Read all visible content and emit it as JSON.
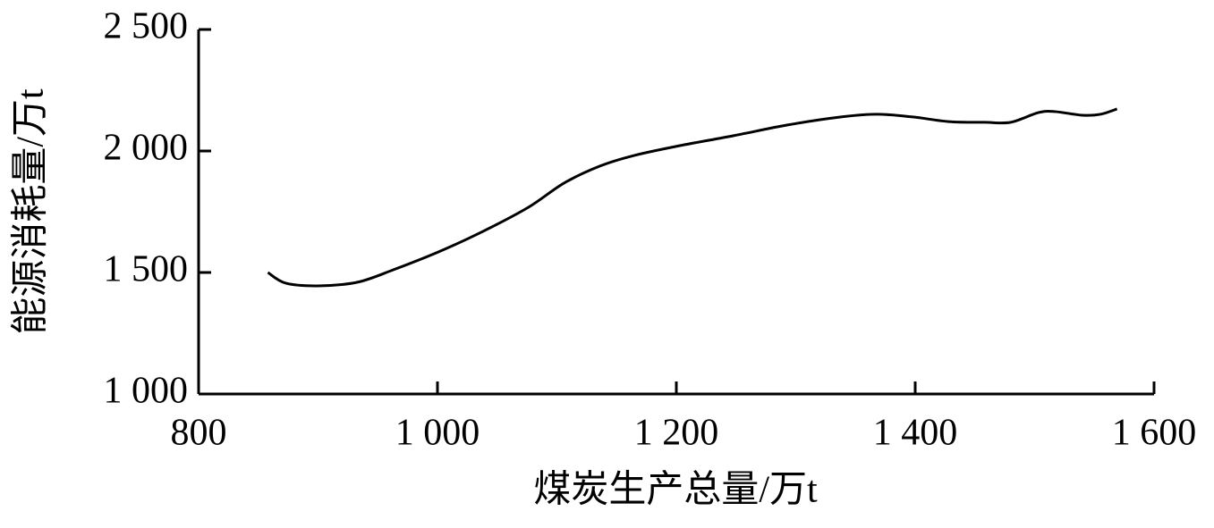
{
  "chart_data": {
    "type": "line",
    "x_label": "煤炭生产总量/万t",
    "y_label": "能源消耗量/万t",
    "x": [
      858,
      873,
      900,
      933,
      963,
      1001,
      1038,
      1076,
      1106,
      1136,
      1165,
      1203,
      1248,
      1293,
      1338,
      1368,
      1398,
      1428,
      1458,
      1480,
      1503,
      1517,
      1540,
      1555,
      1569
    ],
    "values": [
      1500,
      1456,
      1445,
      1460,
      1511,
      1585,
      1669,
      1768,
      1868,
      1938,
      1982,
      2022,
      2063,
      2107,
      2140,
      2151,
      2140,
      2121,
      2118,
      2118,
      2158,
      2162,
      2147,
      2151,
      2173
    ],
    "color": "#000000",
    "xlim": [
      800,
      1600
    ],
    "xticks": [
      800,
      {
        "value": 1000,
        "label": "1 000"
      },
      {
        "value": 1200,
        "label": "1 200"
      },
      {
        "value": 1400,
        "label": "1 400"
      },
      {
        "value": 1600,
        "label": "1 600"
      }
    ],
    "ylim": [
      1000,
      2500
    ],
    "yticks": [
      {
        "value": 1000,
        "label": "1 000"
      },
      {
        "value": 1500,
        "label": "1 500"
      },
      {
        "value": 2000,
        "label": "2 000"
      },
      {
        "value": 2500,
        "label": "2 500"
      }
    ],
    "grid": false
  }
}
